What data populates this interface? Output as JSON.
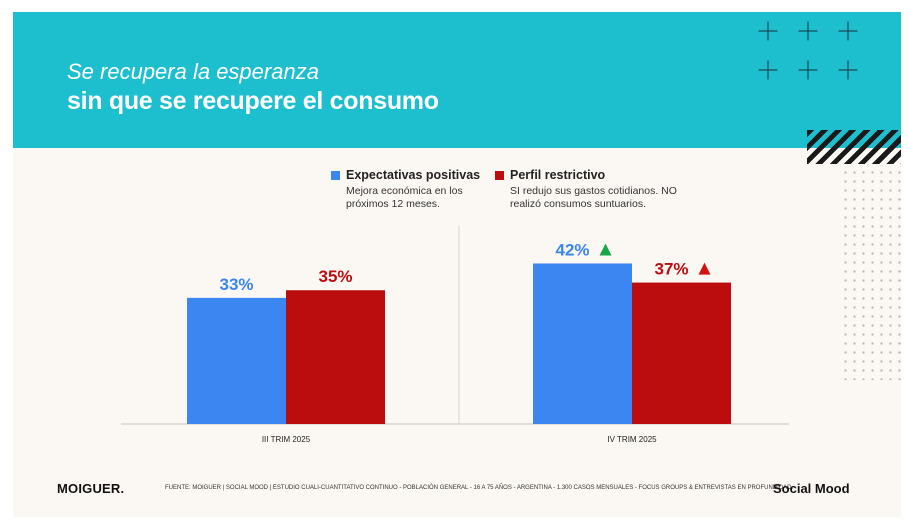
{
  "header": {
    "title_line1": "Se recupera la esperanza",
    "title_line2": "sin que se recupere el consumo"
  },
  "legend": [
    {
      "label": "Expectativas positivas",
      "description": "Mejora económica en los próximos 12 meses.",
      "color": "#3b86f0"
    },
    {
      "label": "Perfil restrictivo",
      "description": "SI redujo sus gastos cotidianos. NO realizó consumos suntuarios.",
      "color": "#bb0d0d"
    }
  ],
  "chart_data": {
    "type": "bar",
    "categories": [
      "III TRIM 2025",
      "IV TRIM 2025"
    ],
    "series": [
      {
        "name": "Expectativas positivas",
        "values": [
          33,
          42
        ],
        "labels": [
          "33%",
          "42%"
        ],
        "color": "#3b86f0"
      },
      {
        "name": "Perfil restrictivo",
        "values": [
          35,
          37
        ],
        "labels": [
          "35%",
          "37%"
        ],
        "color": "#bb0d0d"
      }
    ],
    "trend_up": [
      [
        false,
        true
      ],
      [
        false,
        true
      ]
    ],
    "trend_up_colors": [
      "#1aa64a",
      "#d11414"
    ],
    "title": "",
    "xlabel": "",
    "ylabel": "",
    "ylim": [
      0,
      45
    ],
    "grid": false,
    "legend_position": "top"
  },
  "footer": {
    "logo": "MOIGUER.",
    "source": "FUENTE:  MOIGUER | SOCIAL MOOD | ESTUDIO CUALI-CUANTITATIVO CONTINUO - POBLACIÓN GENERAL - 16 A 75 AÑOS - ARGENTINA -  1.300 CASOS MENSUALES - FOCUS GROUPS & ENTREVISTAS EN PROFUNDIDAD.",
    "brand": "Social Mood"
  }
}
